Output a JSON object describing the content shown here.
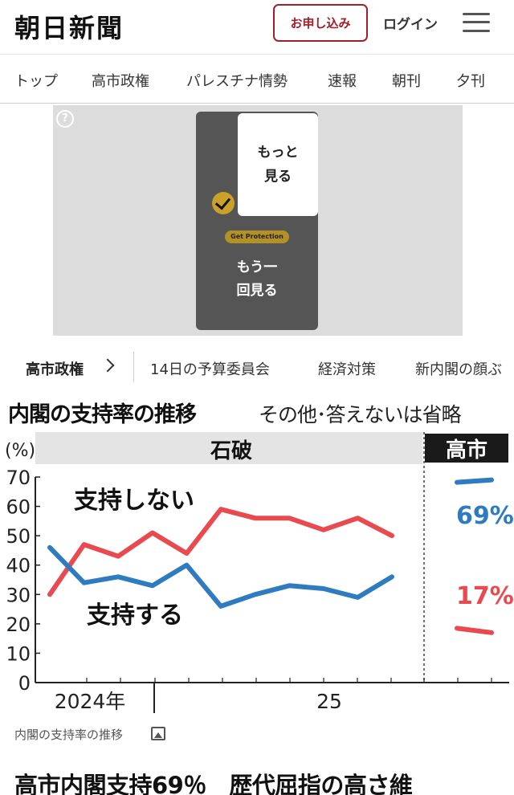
{
  "header": {
    "logo": "朝日新聞",
    "subscribe_label": "お申し込み",
    "login_label": "ログイン",
    "menu_icon": "hamburger-icon"
  },
  "nav": {
    "tabs": [
      "トップ",
      "高市政権",
      "パレスチナ情勢",
      "速報",
      "朝刊",
      "夕刊"
    ]
  },
  "ad": {
    "help_icon": "question-icon",
    "more_label": "もっと見る",
    "protect_label": "Get Protection",
    "replay_label": "もう一回見る"
  },
  "topics": {
    "main": "高市政権",
    "items": [
      "14日の予算委員会",
      "経済対策",
      "新内閣の顔ぶ"
    ]
  },
  "chart_data": {
    "type": "line",
    "title": "内閣の支持率の推移",
    "subtitle": "その他･答えないは省略",
    "ylabel": "(%)",
    "ylim": [
      0,
      70
    ],
    "yticks": [
      "0",
      "10",
      "20",
      "30",
      "40",
      "50",
      "60",
      "70"
    ],
    "xticks": [
      "2024年",
      "25"
    ],
    "periods": [
      "石破",
      "高市"
    ],
    "series": [
      {
        "name": "支持しない",
        "color": "#e84a4f",
        "values": [
          30,
          47,
          43,
          51,
          44,
          59,
          56,
          56,
          52,
          56,
          50
        ]
      },
      {
        "name": "支持する",
        "color": "#2f7bc0",
        "values": [
          46,
          34,
          36,
          33,
          40,
          26,
          30,
          33,
          32,
          29,
          36
        ]
      }
    ],
    "takaichi": [
      {
        "name": "支持する",
        "value": "69%",
        "color": "#2f7bc0"
      },
      {
        "name": "支持しない",
        "value": "17%",
        "color": "#e84a4f"
      }
    ]
  },
  "caption": "内閣の支持率の推移",
  "headline": "高市内閣支持69％　歴代屈指の高さ維"
}
